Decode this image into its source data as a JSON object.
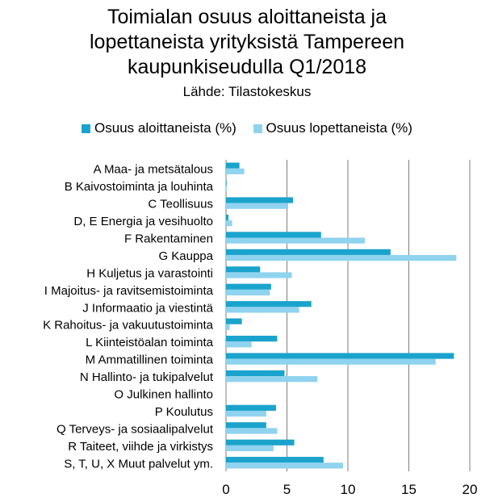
{
  "chart_data": {
    "type": "bar",
    "orientation": "horizontal",
    "title_lines": [
      "Toimialan osuus aloittaneista ja",
      "lopettaneista yrityksistä Tampereen",
      "kaupunkiseudulla Q1/2018"
    ],
    "subtitle": "Lähde: Tilastokeskus",
    "categories": [
      "A Maa- ja metsätalous",
      "B Kaivostoiminta ja louhinta",
      "C Teollisuus",
      "D, E Energia ja vesihuolto",
      "F Rakentaminen",
      "G Kauppa",
      "H Kuljetus ja varastointi",
      "I Majoitus- ja ravitsemistoiminta",
      "J Informaatio ja viestintä",
      "K Rahoitus- ja vakuutustoiminta",
      "L Kiinteistöalan toiminta",
      "M Ammatillinen toiminta",
      "N Hallinto- ja tukipalvelut",
      "O Julkinen hallinto",
      "P Koulutus",
      "Q Terveys- ja sosiaalipalvelut",
      "R Taiteet, viihde ja virkistys",
      "S, T, U, X Muut palvelut ym."
    ],
    "series": [
      {
        "name": "Osuus aloittaneista (%)",
        "color": "#1aa3cc",
        "values": [
          1.1,
          0.05,
          5.5,
          0.2,
          7.8,
          13.5,
          2.8,
          3.7,
          7.0,
          1.3,
          4.2,
          18.7,
          4.8,
          0,
          4.1,
          3.3,
          5.6,
          8.0
        ]
      },
      {
        "name": "Osuus lopettaneista (%)",
        "color": "#8fd3ef",
        "values": [
          1.5,
          0.05,
          5.1,
          0.5,
          11.4,
          18.9,
          5.4,
          3.6,
          6.0,
          0.3,
          2.1,
          17.2,
          7.5,
          0,
          3.3,
          4.2,
          3.9,
          9.6
        ]
      }
    ],
    "xlim": [
      0,
      20
    ],
    "xticks": [
      0,
      5,
      10,
      15,
      20
    ],
    "grid": "vertical",
    "legend": "top"
  }
}
